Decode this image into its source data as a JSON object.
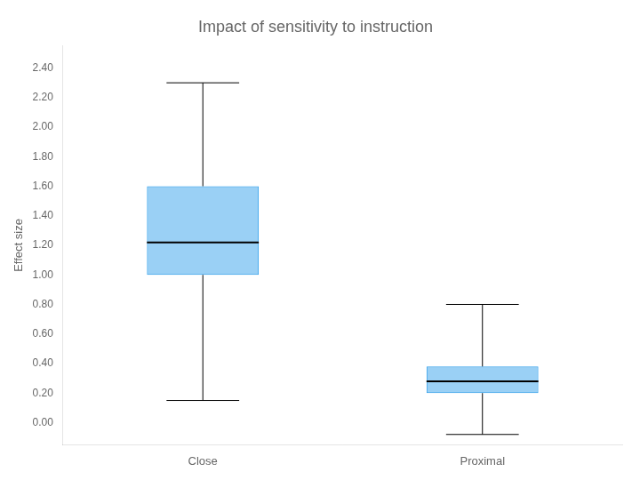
{
  "chart_data": {
    "type": "box",
    "title": "Impact of sensitivity to instruction",
    "ylabel": "Effect size",
    "categories": [
      "Close",
      "Proximal"
    ],
    "values": [
      {
        "whislo": 0.15,
        "q1": 1.0,
        "median": 1.22,
        "q3": 1.6,
        "whishi": 2.3
      },
      {
        "whislo": -0.08,
        "q1": 0.2,
        "median": 0.28,
        "q3": 0.38,
        "whishi": 0.8
      }
    ],
    "ylim": [
      -0.15,
      2.55
    ],
    "yticks": [
      {
        "value": 0.0,
        "label": "0.00"
      },
      {
        "value": 0.2,
        "label": "0.20"
      },
      {
        "value": 0.4,
        "label": "0.40"
      },
      {
        "value": 0.6,
        "label": "0.60"
      },
      {
        "value": 0.8,
        "label": "0.80"
      },
      {
        "value": 1.0,
        "label": "1.00"
      },
      {
        "value": 1.2,
        "label": "1.20"
      },
      {
        "value": 1.4,
        "label": "1.40"
      },
      {
        "value": 1.6,
        "label": "1.60"
      },
      {
        "value": 1.8,
        "label": "1.80"
      },
      {
        "value": 2.0,
        "label": "2.00"
      },
      {
        "value": 2.2,
        "label": "2.20"
      },
      {
        "value": 2.4,
        "label": "2.40"
      }
    ],
    "grid": false
  }
}
